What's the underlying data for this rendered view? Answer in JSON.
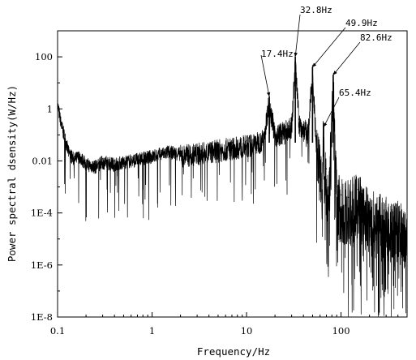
{
  "chart_data": {
    "type": "line",
    "title": "",
    "xlabel": "Frequency/Hz",
    "ylabel": "Power spectral dsensity(W/Hz)",
    "x_scale": "log",
    "y_scale": "log",
    "xlim": [
      0.1,
      500
    ],
    "ylim": [
      1e-08,
      1000
    ],
    "x_ticks": [
      {
        "value": 0.1,
        "label": "0.1"
      },
      {
        "value": 1,
        "label": "1"
      },
      {
        "value": 10,
        "label": "10"
      },
      {
        "value": 100,
        "label": "100"
      }
    ],
    "y_ticks": [
      {
        "value": 1e-08,
        "label": "1E-8"
      },
      {
        "value": 1e-06,
        "label": "1E-6"
      },
      {
        "value": 0.0001,
        "label": "1E-4"
      },
      {
        "value": 0.01,
        "label": "0.01"
      },
      {
        "value": 1,
        "label": "1"
      },
      {
        "value": 100,
        "label": "100"
      }
    ],
    "grid": false,
    "legend": "none",
    "color": "#000000",
    "series": [
      {
        "x": [
          0.1,
          0.11,
          0.12,
          0.13,
          0.15,
          0.17,
          0.2,
          0.25,
          0.3,
          0.4,
          0.5,
          0.7,
          1,
          1.5,
          2,
          3,
          5,
          7,
          10,
          12,
          15,
          17.4,
          20,
          25,
          30,
          32.8,
          36,
          40,
          45,
          49.9,
          55,
          60,
          65.4,
          70,
          75,
          82.6,
          90,
          100,
          120,
          150,
          200,
          300,
          500
        ],
        "y": [
          2.0,
          0.3,
          0.1,
          0.03,
          0.015,
          0.02,
          0.01,
          0.008,
          0.012,
          0.01,
          0.012,
          0.015,
          0.02,
          0.03,
          0.025,
          0.03,
          0.04,
          0.05,
          0.06,
          0.07,
          0.1,
          3.0,
          0.15,
          0.2,
          0.3,
          100,
          0.4,
          0.25,
          0.2,
          40,
          0.05,
          0.01,
          0.2,
          0.005,
          0.002,
          20,
          0.001,
          0.0005,
          0.0004,
          0.0008,
          0.0002,
          0.0001,
          5e-05
        ]
      }
    ],
    "annotations": [
      {
        "text": "32.8Hz",
        "x": 32.8,
        "y": 100
      },
      {
        "text": "49.9Hz",
        "x": 49.9,
        "y": 40
      },
      {
        "text": "82.6Hz",
        "x": 82.6,
        "y": 20
      },
      {
        "text": "17.4Hz",
        "x": 17.4,
        "y": 3
      },
      {
        "text": "65.4Hz",
        "x": 65.4,
        "y": 0.2
      }
    ]
  }
}
